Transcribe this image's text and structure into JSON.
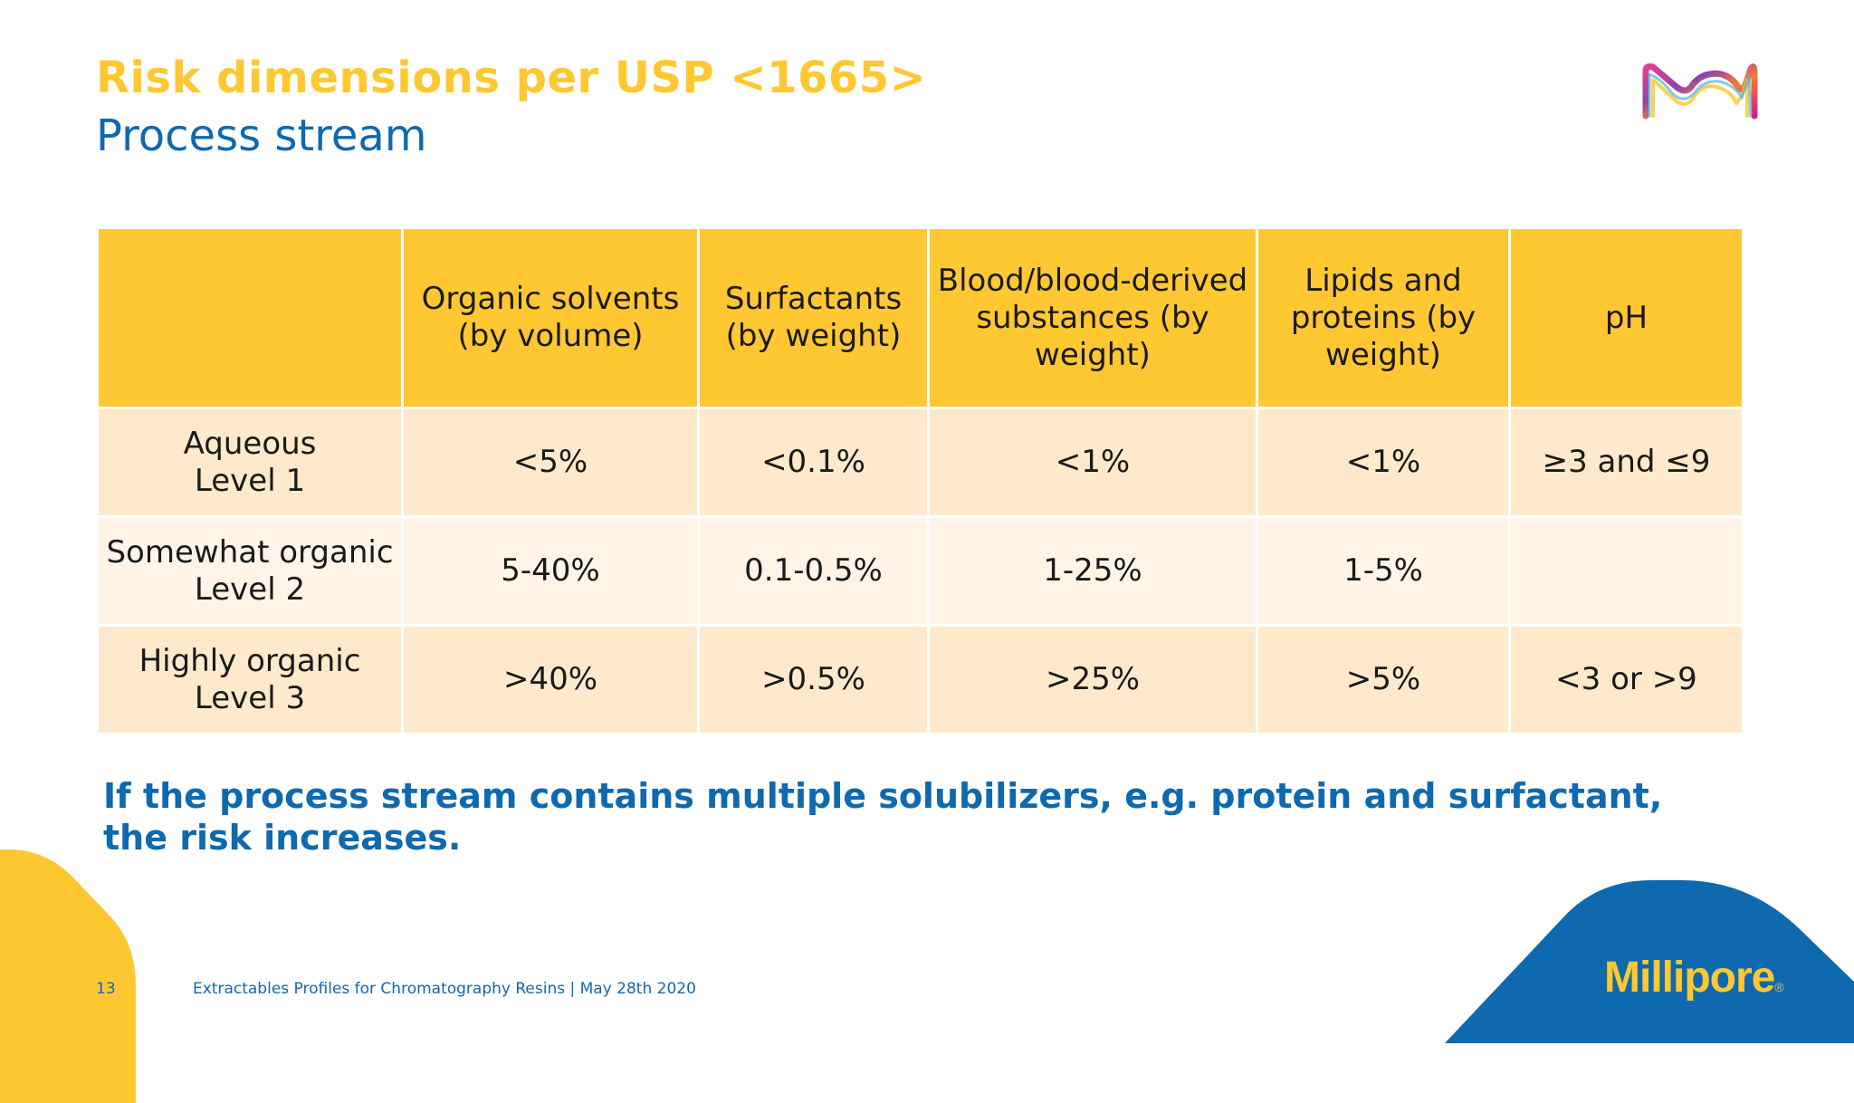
{
  "slide": {
    "title": "Risk dimensions per USP <1665>",
    "subtitle": "Process stream",
    "page_number": "13",
    "footer_text": "Extractables Profiles for Chromatography Resins | May 28th 2020",
    "brand": "Millipore",
    "brand_mark": "®",
    "logo_icon": "m-logo-icon",
    "note": "If the process stream contains multiple solubilizers, e.g. protein and surfactant, the risk increases."
  },
  "colors": {
    "accent_yellow": "#FFC832",
    "brand_blue": "#0F69AF",
    "row_dark": "#FEE9CC",
    "row_light": "#FFF4E6"
  },
  "table": {
    "headers": [
      "",
      "Organic solvents (by volume)",
      "Surfactants (by weight)",
      "Blood/blood-derived substances (by weight)",
      "Lipids and proteins (by weight)",
      "pH"
    ],
    "rows": [
      {
        "label_line1": "Aqueous",
        "label_line2": "Level 1",
        "cells": [
          "<5%",
          "<0.1%",
          "<1%",
          "<1%",
          "≥3 and ≤9"
        ]
      },
      {
        "label_line1": "Somewhat organic",
        "label_line2": "Level 2",
        "cells": [
          "5-40%",
          "0.1-0.5%",
          "1-25%",
          "1-5%",
          ""
        ]
      },
      {
        "label_line1": "Highly organic",
        "label_line2": "Level 3",
        "cells": [
          ">40%",
          ">0.5%",
          ">25%",
          ">5%",
          "<3 or >9"
        ]
      }
    ]
  }
}
